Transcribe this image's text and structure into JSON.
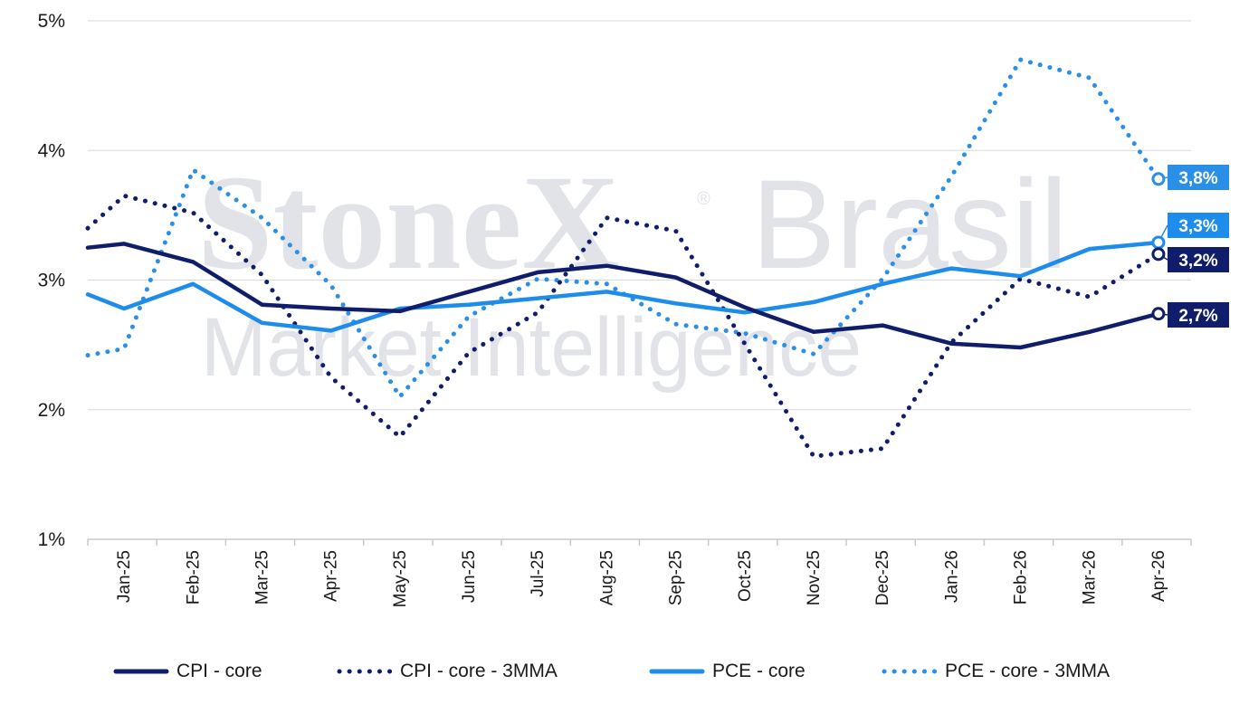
{
  "chart_data": {
    "type": "line",
    "categories": [
      "Jan-25",
      "Feb-25",
      "Mar-25",
      "Apr-25",
      "May-25",
      "Jun-25",
      "Jul-25",
      "Aug-25",
      "Sep-25",
      "Oct-25",
      "Nov-25",
      "Dec-25",
      "Jan-26",
      "Feb-26",
      "Mar-26",
      "Apr-26"
    ],
    "ylim": [
      1,
      5
    ],
    "yticks": [
      "1%",
      "2%",
      "3%",
      "4%",
      "5%"
    ],
    "grid": "horizontal",
    "legend_position": "bottom",
    "watermark": {
      "line1a": "StoneX",
      "registered": "®",
      "line1b": "Brasil",
      "line2": "Market Intelligence"
    },
    "series": [
      {
        "name": "CPI - core",
        "color": "#101d6b",
        "style": "solid",
        "end_label": "2,7%",
        "values": [
          3.28,
          3.14,
          2.81,
          2.78,
          2.76,
          2.91,
          3.06,
          3.11,
          3.02,
          2.79,
          2.6,
          2.65,
          2.51,
          2.48,
          2.6,
          2.74
        ]
      },
      {
        "name": "CPI - core - 3MMA",
        "color": "#101d6b",
        "style": "dotted",
        "end_label": "3,2%",
        "values": [
          3.65,
          3.52,
          3.04,
          2.25,
          1.79,
          2.44,
          2.75,
          3.48,
          3.38,
          2.51,
          1.64,
          1.7,
          2.52,
          3.01,
          2.87,
          3.2
        ]
      },
      {
        "name": "PCE - core",
        "color": "#1e8ceb",
        "style": "solid",
        "end_label": "3,3%",
        "values": [
          2.78,
          2.97,
          2.67,
          2.61,
          2.78,
          2.81,
          2.86,
          2.91,
          2.82,
          2.75,
          2.83,
          2.97,
          3.09,
          3.03,
          3.24,
          3.29
        ]
      },
      {
        "name": "PCE - core - 3MMA",
        "color": "#2b8fe8",
        "style": "dotted",
        "end_label": "3,8%",
        "values": [
          2.47,
          3.85,
          3.48,
          2.96,
          2.1,
          2.72,
          3.01,
          2.97,
          2.66,
          2.59,
          2.43,
          3.01,
          3.8,
          4.7,
          4.56,
          3.78
        ]
      }
    ]
  }
}
